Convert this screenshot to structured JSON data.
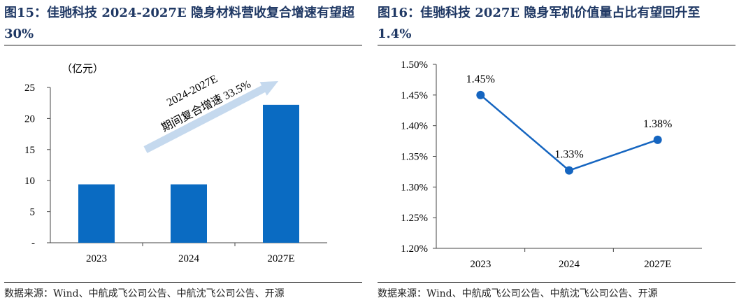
{
  "panels": [
    {
      "title": "图15：佳驰科技 2024-2027E 隐身材料营收复合增速有望超 30%",
      "source": "数据来源：Wind、中航成飞公司公告、中航沈飞公司公告、开源"
    },
    {
      "title": "图16：佳驰科技 2027E 隐身军机价值量占比有望回升至 1.4%",
      "source": "数据来源：Wind、中航成飞公司公告、中航沈飞公司公告、开源"
    }
  ],
  "chart_data": [
    {
      "type": "bar",
      "categories": [
        "2023",
        "2024",
        "2027E"
      ],
      "values": [
        9.4,
        9.4,
        22.2
      ],
      "unit_label": "（亿元）",
      "ylim": [
        0,
        25
      ],
      "yticks": [
        "-",
        "5",
        "10",
        "15",
        "20",
        "25"
      ],
      "ytick_values": [
        0,
        5,
        10,
        15,
        20,
        25
      ],
      "annotation": {
        "line1": "2024-2027E",
        "line2": "期间复合增速 33.5%"
      },
      "colors": {
        "bar": "#0a6bc2",
        "arrow": "#c5d9ee"
      },
      "grid": false
    },
    {
      "type": "line",
      "categories": [
        "2023",
        "2024",
        "2027E"
      ],
      "values": [
        1.45,
        1.327,
        1.377
      ],
      "data_labels": [
        "1.45%",
        "1.33%",
        "1.38%"
      ],
      "ylim": [
        1.2,
        1.5
      ],
      "yticks": [
        "1.20%",
        "1.25%",
        "1.30%",
        "1.35%",
        "1.40%",
        "1.45%",
        "1.50%"
      ],
      "ytick_values": [
        1.2,
        1.25,
        1.3,
        1.35,
        1.4,
        1.45,
        1.5
      ],
      "colors": {
        "line": "#1565c0"
      },
      "grid": false
    }
  ]
}
